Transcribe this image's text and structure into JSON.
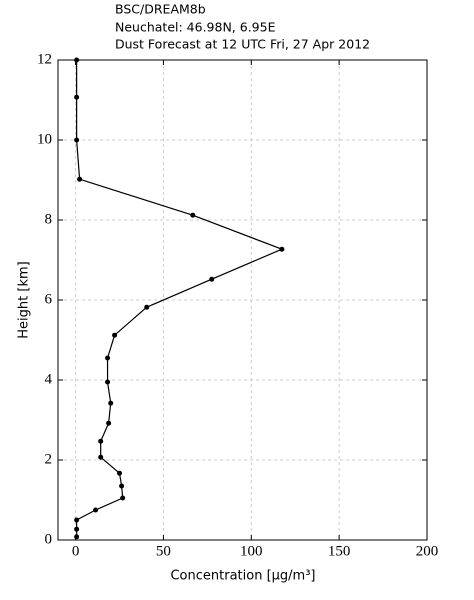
{
  "chart_data": {
    "type": "line",
    "title": [
      "BSC/DREAM8b",
      "Neuchatel: 46.98N, 6.95E",
      "Dust Forecast at 12 UTC Fri, 27 Apr 2012"
    ],
    "x_label": "Concentration [μg/m³]",
    "y_label": "Height [km]",
    "x": [
      0.6,
      0.6,
      0.6,
      2.3,
      66.7,
      117.4,
      77.5,
      40.5,
      22.2,
      18.2,
      18.2,
      20,
      18.8,
      14.3,
      14.3,
      25,
      26.2,
      26.8,
      11.4,
      0.6,
      0.6,
      0.6
    ],
    "series": [
      {
        "color": "#000000",
        "values": [
          12,
          11.07,
          10,
          9.02,
          8.12,
          7.27,
          6.52,
          5.82,
          5.12,
          4.55,
          3.95,
          3.42,
          2.92,
          2.47,
          2.07,
          1.67,
          1.35,
          1.05,
          0.75,
          0.5,
          0.27,
          0.08
        ]
      }
    ],
    "xlim": [
      -10,
      200
    ],
    "xticks": [
      0,
      50,
      100,
      150,
      200
    ],
    "ylim": [
      0,
      12
    ],
    "yticks": [
      0,
      2,
      4,
      6,
      8,
      10,
      12
    ],
    "grid": true
  }
}
